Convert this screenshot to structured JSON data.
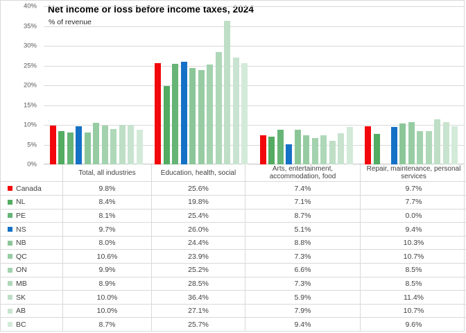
{
  "frame": {
    "background": "#ffffff",
    "border_color": "#d9d9d9",
    "gridline_color": "#d9d9d9",
    "axis_line_color": "#bfbfbf"
  },
  "chart_data": {
    "type": "bar",
    "title": "Net income or loss before income taxes, 2024",
    "subtitle": "% of revenue",
    "xlabel": "",
    "ylabel": "",
    "ylim": [
      0,
      40
    ],
    "ytick_step": 5,
    "ytick_labels": [
      "0%",
      "5%",
      "10%",
      "15%",
      "20%",
      "25%",
      "30%",
      "35%",
      "40%"
    ],
    "grid": true,
    "legend_position": "table rows below chart",
    "value_suffix": "%",
    "categories": [
      "Total, all industries",
      "Education, health, social",
      "Arts, entertainment, accommodation, food",
      "Repair, maintenance, personal services"
    ],
    "series": [
      {
        "name": "Canada",
        "color": "#f2080c",
        "values": [
          9.8,
          25.6,
          7.4,
          9.7
        ]
      },
      {
        "name": "NL",
        "color": "#53ac62",
        "values": [
          8.4,
          19.8,
          7.1,
          7.7
        ]
      },
      {
        "name": "PE",
        "color": "#66b476",
        "values": [
          8.1,
          25.4,
          8.7,
          0.0
        ]
      },
      {
        "name": "NS",
        "color": "#1571c6",
        "values": [
          9.7,
          26.0,
          5.1,
          9.4
        ]
      },
      {
        "name": "NB",
        "color": "#8bc698",
        "values": [
          8.0,
          24.4,
          8.8,
          10.3
        ]
      },
      {
        "name": "QC",
        "color": "#97cca3",
        "values": [
          10.6,
          23.9,
          7.3,
          10.7
        ]
      },
      {
        "name": "ON",
        "color": "#a3d2ae",
        "values": [
          9.9,
          25.2,
          6.6,
          8.5
        ]
      },
      {
        "name": "MB",
        "color": "#afd8b9",
        "values": [
          8.9,
          28.5,
          7.3,
          8.5
        ]
      },
      {
        "name": "SK",
        "color": "#bedec6",
        "values": [
          10.0,
          36.4,
          5.9,
          11.4
        ]
      },
      {
        "name": "AB",
        "color": "#c8e3cf",
        "values": [
          10.0,
          27.1,
          7.9,
          10.7
        ]
      },
      {
        "name": "BC",
        "color": "#d3ead9",
        "values": [
          8.7,
          25.7,
          9.4,
          9.6
        ]
      }
    ]
  }
}
